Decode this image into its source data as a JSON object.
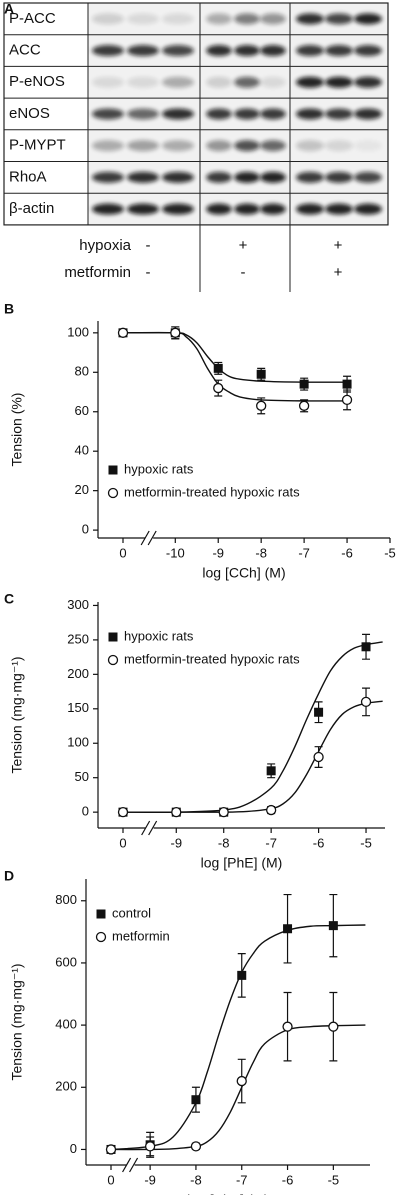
{
  "blot": {
    "panel_label": "A",
    "rows": [
      "P-ACC",
      "ACC",
      "P-eNOS",
      "eNOS",
      "P-MYPT",
      "RhoA",
      "β-actin"
    ],
    "conditions": [
      {
        "label": "hypoxia",
        "signs": [
          "-",
          "+",
          "+"
        ]
      },
      {
        "label": "metformin",
        "signs": [
          "-",
          "-",
          "+"
        ]
      }
    ]
  },
  "chart_data": [
    {
      "type": "line",
      "panel_label": "B",
      "xlabel": "log [CCh] (M)",
      "ylabel": "Tension (%)",
      "x": [
        0,
        -10,
        -9,
        -8,
        -7,
        -6
      ],
      "x_axis_break": true,
      "legend": "lower left",
      "xlim": [
        -11.8,
        -5
      ],
      "ylim": [
        -4,
        106
      ],
      "xticks": [
        0,
        -10,
        -9,
        -8,
        -7,
        -6,
        -5
      ],
      "yticks": [
        0,
        20,
        40,
        60,
        80,
        100
      ],
      "series": [
        {
          "name": "hypoxic rats",
          "marker": "square",
          "color": "#111111",
          "values": [
            100,
            100,
            82,
            79,
            74,
            74
          ],
          "errors": [
            1,
            3,
            3,
            3,
            3,
            4
          ],
          "fit": {
            "x": [
              0,
              -10,
              -9.75,
              -9.5,
              -9.25,
              -9,
              -8.75,
              -8.5,
              -8,
              -7,
              -6
            ],
            "values": [
              100,
              100,
              99,
              95,
              88,
              82,
              78,
              76.5,
              75.5,
              75,
              75
            ]
          }
        },
        {
          "name": "metformin-treated hypoxic rats",
          "marker": "circle",
          "color": "#111111",
          "values": [
            100,
            100,
            72,
            63,
            63,
            66
          ],
          "errors": [
            1,
            3,
            4,
            4,
            3,
            5
          ],
          "fit": {
            "x": [
              0,
              -10,
              -9.75,
              -9.5,
              -9.25,
              -9,
              -8.75,
              -8.5,
              -8,
              -7,
              -6
            ],
            "values": [
              100,
              100,
              98,
              92,
              82,
              74,
              70,
              67.5,
              66,
              65.5,
              65.5
            ]
          }
        }
      ]
    },
    {
      "type": "line",
      "panel_label": "C",
      "xlabel": "log [PhE] (M)",
      "ylabel": "Tension (mg·mg⁻¹)",
      "x": [
        0,
        -9,
        -8,
        -7,
        -6,
        -5
      ],
      "x_axis_break": true,
      "legend": "upper left",
      "xlim": [
        -10.65,
        -4.6
      ],
      "ylim": [
        -23,
        305
      ],
      "xticks": [
        0,
        -9,
        -8,
        -7,
        -6,
        -5
      ],
      "yticks": [
        0,
        50,
        100,
        150,
        200,
        250,
        300
      ],
      "series": [
        {
          "name": "hypoxic rats",
          "marker": "square",
          "color": "#111111",
          "values": [
            0,
            0,
            0,
            60,
            145,
            240
          ],
          "errors": [
            2,
            2,
            2,
            10,
            15,
            18
          ],
          "fit": {
            "x": [
              0,
              -9,
              -8,
              -7.5,
              -7,
              -6.75,
              -6.5,
              -6.25,
              -6,
              -5.75,
              -5.5,
              -5.25,
              -5,
              -4.65
            ],
            "values": [
              0,
              0,
              3,
              12,
              35,
              60,
              95,
              135,
              172,
              205,
              226,
              238,
              243,
              247
            ]
          }
        },
        {
          "name": "metformin-treated hypoxic rats",
          "marker": "circle",
          "color": "#111111",
          "values": [
            0,
            0,
            0,
            3,
            80,
            160
          ],
          "errors": [
            2,
            2,
            2,
            5,
            15,
            20
          ],
          "fit": {
            "x": [
              0,
              -9,
              -8,
              -7.5,
              -7,
              -6.75,
              -6.5,
              -6.25,
              -6,
              -5.75,
              -5.5,
              -5.25,
              -5,
              -4.65
            ],
            "values": [
              0,
              0,
              0,
              1,
              5,
              12,
              28,
              55,
              88,
              120,
              142,
              153,
              158,
              161
            ]
          }
        }
      ]
    },
    {
      "type": "line",
      "panel_label": "D",
      "xlabel": "log [PhE] (M)",
      "ylabel": "Tension (mg·mg⁻¹)",
      "x": [
        0,
        -9,
        -8,
        -7,
        -6,
        -5
      ],
      "x_axis_break": true,
      "legend": "upper left",
      "xlim": [
        -10.4,
        -4.2
      ],
      "ylim": [
        -50,
        870
      ],
      "xticks": [
        0,
        -9,
        -8,
        -7,
        -6,
        -5
      ],
      "yticks": [
        0,
        200,
        400,
        600,
        800
      ],
      "series": [
        {
          "name": "control",
          "marker": "square",
          "color": "#111111",
          "values": [
            0,
            15,
            160,
            560,
            710,
            720
          ],
          "errors": [
            10,
            40,
            40,
            70,
            110,
            100
          ],
          "fit": {
            "x": [
              0,
              -9,
              -8.5,
              -8,
              -7.75,
              -7.5,
              -7.25,
              -7,
              -6.75,
              -6.5,
              -6,
              -5.5,
              -5,
              -4.3
            ],
            "values": [
              0,
              10,
              40,
              150,
              250,
              370,
              480,
              570,
              630,
              670,
              705,
              718,
              720,
              722
            ]
          }
        },
        {
          "name": "metformin",
          "marker": "circle",
          "color": "#111111",
          "values": [
            0,
            10,
            10,
            220,
            395,
            395
          ],
          "errors": [
            10,
            30,
            10,
            70,
            110,
            110
          ],
          "fit": {
            "x": [
              0,
              -9,
              -8.5,
              -8,
              -7.75,
              -7.5,
              -7.25,
              -7,
              -6.75,
              -6.5,
              -6,
              -5.5,
              -5,
              -4.3
            ],
            "values": [
              0,
              0,
              2,
              10,
              25,
              60,
              120,
              200,
              280,
              340,
              385,
              395,
              398,
              400
            ]
          }
        }
      ]
    }
  ]
}
